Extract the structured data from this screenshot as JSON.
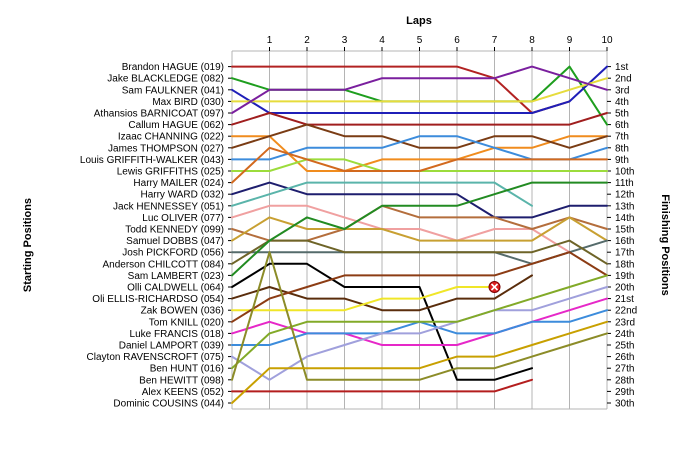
{
  "chart_data": {
    "type": "line",
    "title": "",
    "xlabel": "Laps",
    "ylabel_left": "Starting Positions",
    "ylabel_right": "Finishing Positions",
    "laps": [
      1,
      2,
      3,
      4,
      5,
      6,
      7,
      8,
      9,
      10
    ],
    "starting_grid": [
      "Brandon HAGUE (019)",
      "Jake BLACKLEDGE (082)",
      "Sam FAULKNER (041)",
      "Max BIRD (030)",
      "Athansios BARNICOAT (097)",
      "Callum HAGUE (062)",
      "Izaac CHANNING (022)",
      "James THOMPSON (027)",
      "Louis GRIFFITH-WALKER (043)",
      "Lewis GRIFFITHS (025)",
      "Harry MAILER (024)",
      "Harry WARD (032)",
      "Jack HENNESSEY (051)",
      "Luc OLIVER (077)",
      "Todd KENNEDY (099)",
      "Samuel DOBBS (047)",
      "Josh PICKFORD (056)",
      "Anderson CHILCOTT (084)",
      "Sam LAMBERT (023)",
      "Olli CALDWELL (064)",
      "Oli ELLIS-RICHARDSO (054)",
      "Zak BOWEN (036)",
      "Tom KNILL (020)",
      "Luke FRANCIS (018)",
      "Daniel LAMPORT (039)",
      "Clayton RAVENSCROFT (075)",
      "Ben HUNT (016)",
      "Ben HEWITT (098)",
      "Alex KEENS (052)",
      "Dominic COUSINS (044)"
    ],
    "finishing_labels": [
      "1st",
      "2nd",
      "3rd",
      "4th",
      "5th",
      "6th",
      "7th",
      "8th",
      "9th",
      "10th",
      "11th",
      "12th",
      "13th",
      "14th",
      "15th",
      "16th",
      "17th",
      "18th",
      "19th",
      "20th",
      "21st",
      "22nd",
      "23rd",
      "24th",
      "25th",
      "26th",
      "27th",
      "28th",
      "29th",
      "30th"
    ],
    "finishing_positions": [
      1,
      2,
      3,
      4,
      5,
      6,
      7,
      8,
      9,
      10,
      11,
      12,
      13,
      14,
      15,
      16,
      17,
      18,
      19,
      20,
      21,
      22,
      23,
      24,
      25,
      26,
      27,
      28,
      29,
      30
    ],
    "series": [
      {
        "color": "#b22222",
        "positions": [
          1,
          1,
          1,
          1,
          1,
          1,
          1,
          2,
          5,
          4
        ]
      },
      {
        "color": "#1e9e1e",
        "positions": [
          2,
          3,
          3,
          3,
          4,
          4,
          4,
          4,
          4,
          1,
          6
        ]
      },
      {
        "color": "#1f1fb8",
        "positions": [
          3,
          5,
          5,
          5,
          5,
          5,
          5,
          5,
          5,
          4,
          1
        ]
      },
      {
        "color": "#e6dc3c",
        "positions": [
          4,
          4,
          4,
          4,
          4,
          4,
          4,
          4,
          4,
          3,
          2
        ]
      },
      {
        "color": "#7a1f9e",
        "positions": [
          5,
          3,
          3,
          3,
          2,
          2,
          2,
          2,
          1,
          2,
          3
        ]
      },
      {
        "color": "#a01e1e",
        "positions": [
          6,
          5,
          6,
          6,
          6,
          6,
          6,
          6,
          6,
          6,
          5
        ]
      },
      {
        "color": "#f08c1e",
        "positions": [
          7,
          7,
          10,
          10,
          9,
          9,
          9,
          8,
          8,
          7,
          7
        ]
      },
      {
        "color": "#7a3c14",
        "positions": [
          8,
          7,
          6,
          7,
          7,
          8,
          8,
          7,
          7,
          8,
          7
        ]
      },
      {
        "color": "#3c8cdc",
        "positions": [
          9,
          9,
          8,
          8,
          8,
          7,
          7,
          8,
          9,
          9,
          8
        ]
      },
      {
        "color": "#9cdc3c",
        "positions": [
          10,
          10,
          9,
          9,
          10,
          10,
          10,
          10,
          10,
          10,
          10
        ]
      },
      {
        "color": "#d2691e",
        "positions": [
          11,
          8,
          9,
          10,
          10,
          10,
          9,
          9,
          9,
          9,
          9
        ]
      },
      {
        "color": "#1e1e6e",
        "positions": [
          12,
          11,
          12,
          12,
          12,
          12,
          12,
          14,
          14,
          13,
          13
        ]
      },
      {
        "color": "#5ab4aa",
        "positions": [
          13,
          12,
          11,
          11,
          11,
          11,
          11,
          11,
          13
        ]
      },
      {
        "color": "#f0a0a0",
        "positions": [
          14,
          13,
          13,
          14,
          15,
          15,
          16,
          15,
          15,
          17
        ]
      },
      {
        "color": "#b46e3c",
        "positions": [
          15,
          16,
          16,
          15,
          13,
          14,
          14,
          14,
          15,
          14,
          15
        ]
      },
      {
        "color": "#c8a032",
        "positions": [
          16,
          14,
          15,
          15,
          15,
          16,
          16,
          16,
          16,
          14,
          16
        ]
      },
      {
        "color": "#556b6b",
        "positions": [
          17,
          17,
          17,
          17,
          17,
          17,
          17,
          17,
          18,
          17,
          16
        ]
      },
      {
        "color": "#6e6428",
        "positions": [
          18,
          16,
          16,
          17,
          17,
          17,
          17,
          17,
          17,
          16,
          18
        ]
      },
      {
        "color": "#228b22",
        "positions": [
          19,
          16,
          14,
          15,
          13,
          13,
          13,
          12,
          11,
          11,
          11
        ]
      },
      {
        "color": "#000000",
        "positions": [
          20,
          18,
          18,
          20,
          20,
          20,
          28,
          28,
          27
        ]
      },
      {
        "color": "#5a2d0c",
        "positions": [
          21,
          20,
          21,
          21,
          22,
          22,
          21,
          21,
          19
        ]
      },
      {
        "color": "#f0e628",
        "positions": [
          22,
          22,
          22,
          22,
          21,
          21,
          20,
          20
        ]
      },
      {
        "color": "#8c3c14",
        "positions": [
          23,
          21,
          20,
          19,
          19,
          19,
          19,
          19,
          18,
          17,
          19
        ]
      },
      {
        "color": "#e628c8",
        "positions": [
          24,
          23,
          24,
          24,
          25,
          25,
          25,
          24,
          23,
          22,
          21
        ]
      },
      {
        "color": "#3c8cdc",
        "positions": [
          25,
          25,
          24,
          24,
          24,
          23,
          24,
          24,
          23,
          23,
          22
        ]
      },
      {
        "color": "#a0a0dc",
        "positions": [
          26,
          28,
          26,
          25,
          24,
          24,
          23,
          22,
          22,
          21,
          20
        ]
      },
      {
        "color": "#82aa28",
        "positions": [
          27,
          24,
          23,
          23,
          23,
          23,
          23,
          22,
          21,
          20,
          19
        ]
      },
      {
        "color": "#8c8c28",
        "positions": [
          28,
          17,
          28,
          28,
          28,
          28,
          27,
          27,
          26,
          25,
          24
        ]
      },
      {
        "color": "#b41e1e",
        "positions": [
          29,
          29,
          29,
          29,
          29,
          29,
          29,
          29,
          28
        ]
      },
      {
        "color": "#c8a000",
        "positions": [
          30,
          27,
          27,
          27,
          27,
          27,
          26,
          26,
          25,
          24,
          23
        ]
      }
    ],
    "retired_marker": {
      "lap": 7,
      "position": 20,
      "color": "#dc1e1e",
      "symbol": "x"
    },
    "grid": true,
    "background": "#ffffff",
    "gridline_color": "#b4b4b4"
  }
}
